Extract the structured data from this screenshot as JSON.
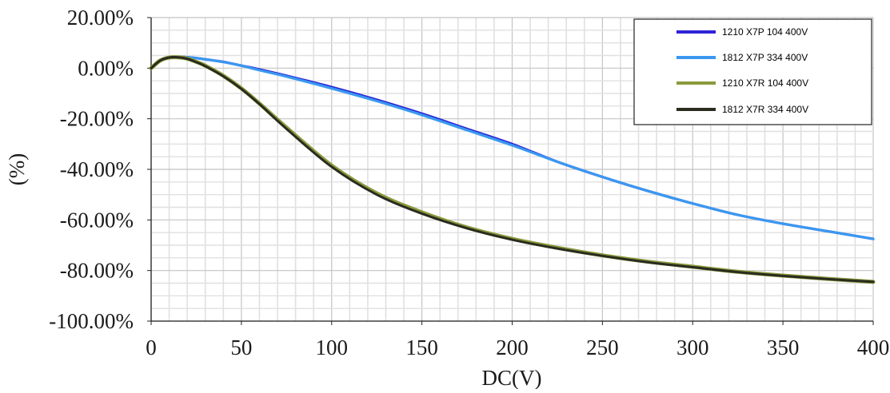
{
  "chart_data": {
    "type": "line",
    "xlabel": "DC(V)",
    "ylabel": "(%)",
    "xlim": [
      0,
      400
    ],
    "ylim": [
      -100,
      20
    ],
    "x_ticks": [
      0,
      50,
      100,
      150,
      200,
      250,
      300,
      350,
      400
    ],
    "x_tick_labels": [
      "0",
      "50",
      "100",
      "150",
      "200",
      "250",
      "300",
      "350",
      "400"
    ],
    "y_ticks": [
      20,
      0,
      -20,
      -40,
      -60,
      -80,
      -100
    ],
    "y_tick_labels": [
      "20.00%",
      "0.00%",
      "-20.00%",
      "-40.00%",
      "-60.00%",
      "-80.00%",
      "-100.00%"
    ],
    "grid": true,
    "legend_position": "top-right",
    "series": [
      {
        "name": "1210 X7P 104 400V",
        "color": "#2c24d6",
        "x": [
          0,
          5,
          10,
          15,
          20,
          25,
          30,
          40,
          50,
          60,
          75,
          100,
          125,
          150,
          175,
          200,
          225,
          250,
          275,
          300,
          325,
          350,
          375,
          400
        ],
        "y": [
          0,
          3,
          4.2,
          4.5,
          4.3,
          4,
          3.5,
          2.5,
          1,
          -0.5,
          -3,
          -7.5,
          -12.5,
          -18,
          -24,
          -30,
          -37,
          -43,
          -48.5,
          -53.5,
          -58,
          -61.5,
          -64.5,
          -67.5
        ]
      },
      {
        "name": "1812 X7P 334 400V",
        "color": "#3a98f0",
        "x": [
          0,
          5,
          10,
          15,
          20,
          25,
          30,
          40,
          50,
          60,
          75,
          100,
          125,
          150,
          175,
          200,
          225,
          250,
          275,
          300,
          325,
          350,
          375,
          400
        ],
        "y": [
          0,
          3,
          4.2,
          4.5,
          4.3,
          4,
          3.5,
          2.4,
          1,
          -0.8,
          -3.3,
          -8,
          -13,
          -18.5,
          -24.5,
          -30.5,
          -37,
          -43,
          -48.5,
          -53.5,
          -58,
          -61.5,
          -64.5,
          -67.5
        ]
      },
      {
        "name": "1210 X7R 104 400V",
        "color": "#8a9a3c",
        "x": [
          0,
          5,
          10,
          15,
          20,
          25,
          30,
          40,
          50,
          60,
          75,
          100,
          125,
          150,
          175,
          200,
          225,
          250,
          275,
          300,
          325,
          350,
          375,
          400
        ],
        "y": [
          0,
          3,
          4.2,
          4.3,
          3.8,
          2.5,
          1,
          -3,
          -8,
          -14,
          -23.5,
          -38.5,
          -49.5,
          -57,
          -63,
          -67.5,
          -71,
          -74,
          -76.5,
          -78.5,
          -80.5,
          -82,
          -83.3,
          -84.5
        ]
      },
      {
        "name": "1812 X7R 334 400V",
        "color": "#2b2b1f",
        "x": [
          0,
          5,
          10,
          15,
          20,
          25,
          30,
          40,
          50,
          60,
          75,
          100,
          125,
          150,
          175,
          200,
          225,
          250,
          275,
          300,
          325,
          350,
          375,
          400
        ],
        "y": [
          0,
          3,
          4.2,
          4.3,
          3.7,
          2.4,
          0.8,
          -3.2,
          -8.2,
          -14.2,
          -24,
          -39,
          -50,
          -57.5,
          -63.3,
          -67.8,
          -71.3,
          -74.2,
          -76.7,
          -78.7,
          -80.6,
          -82.1,
          -83.4,
          -84.5
        ]
      }
    ]
  }
}
